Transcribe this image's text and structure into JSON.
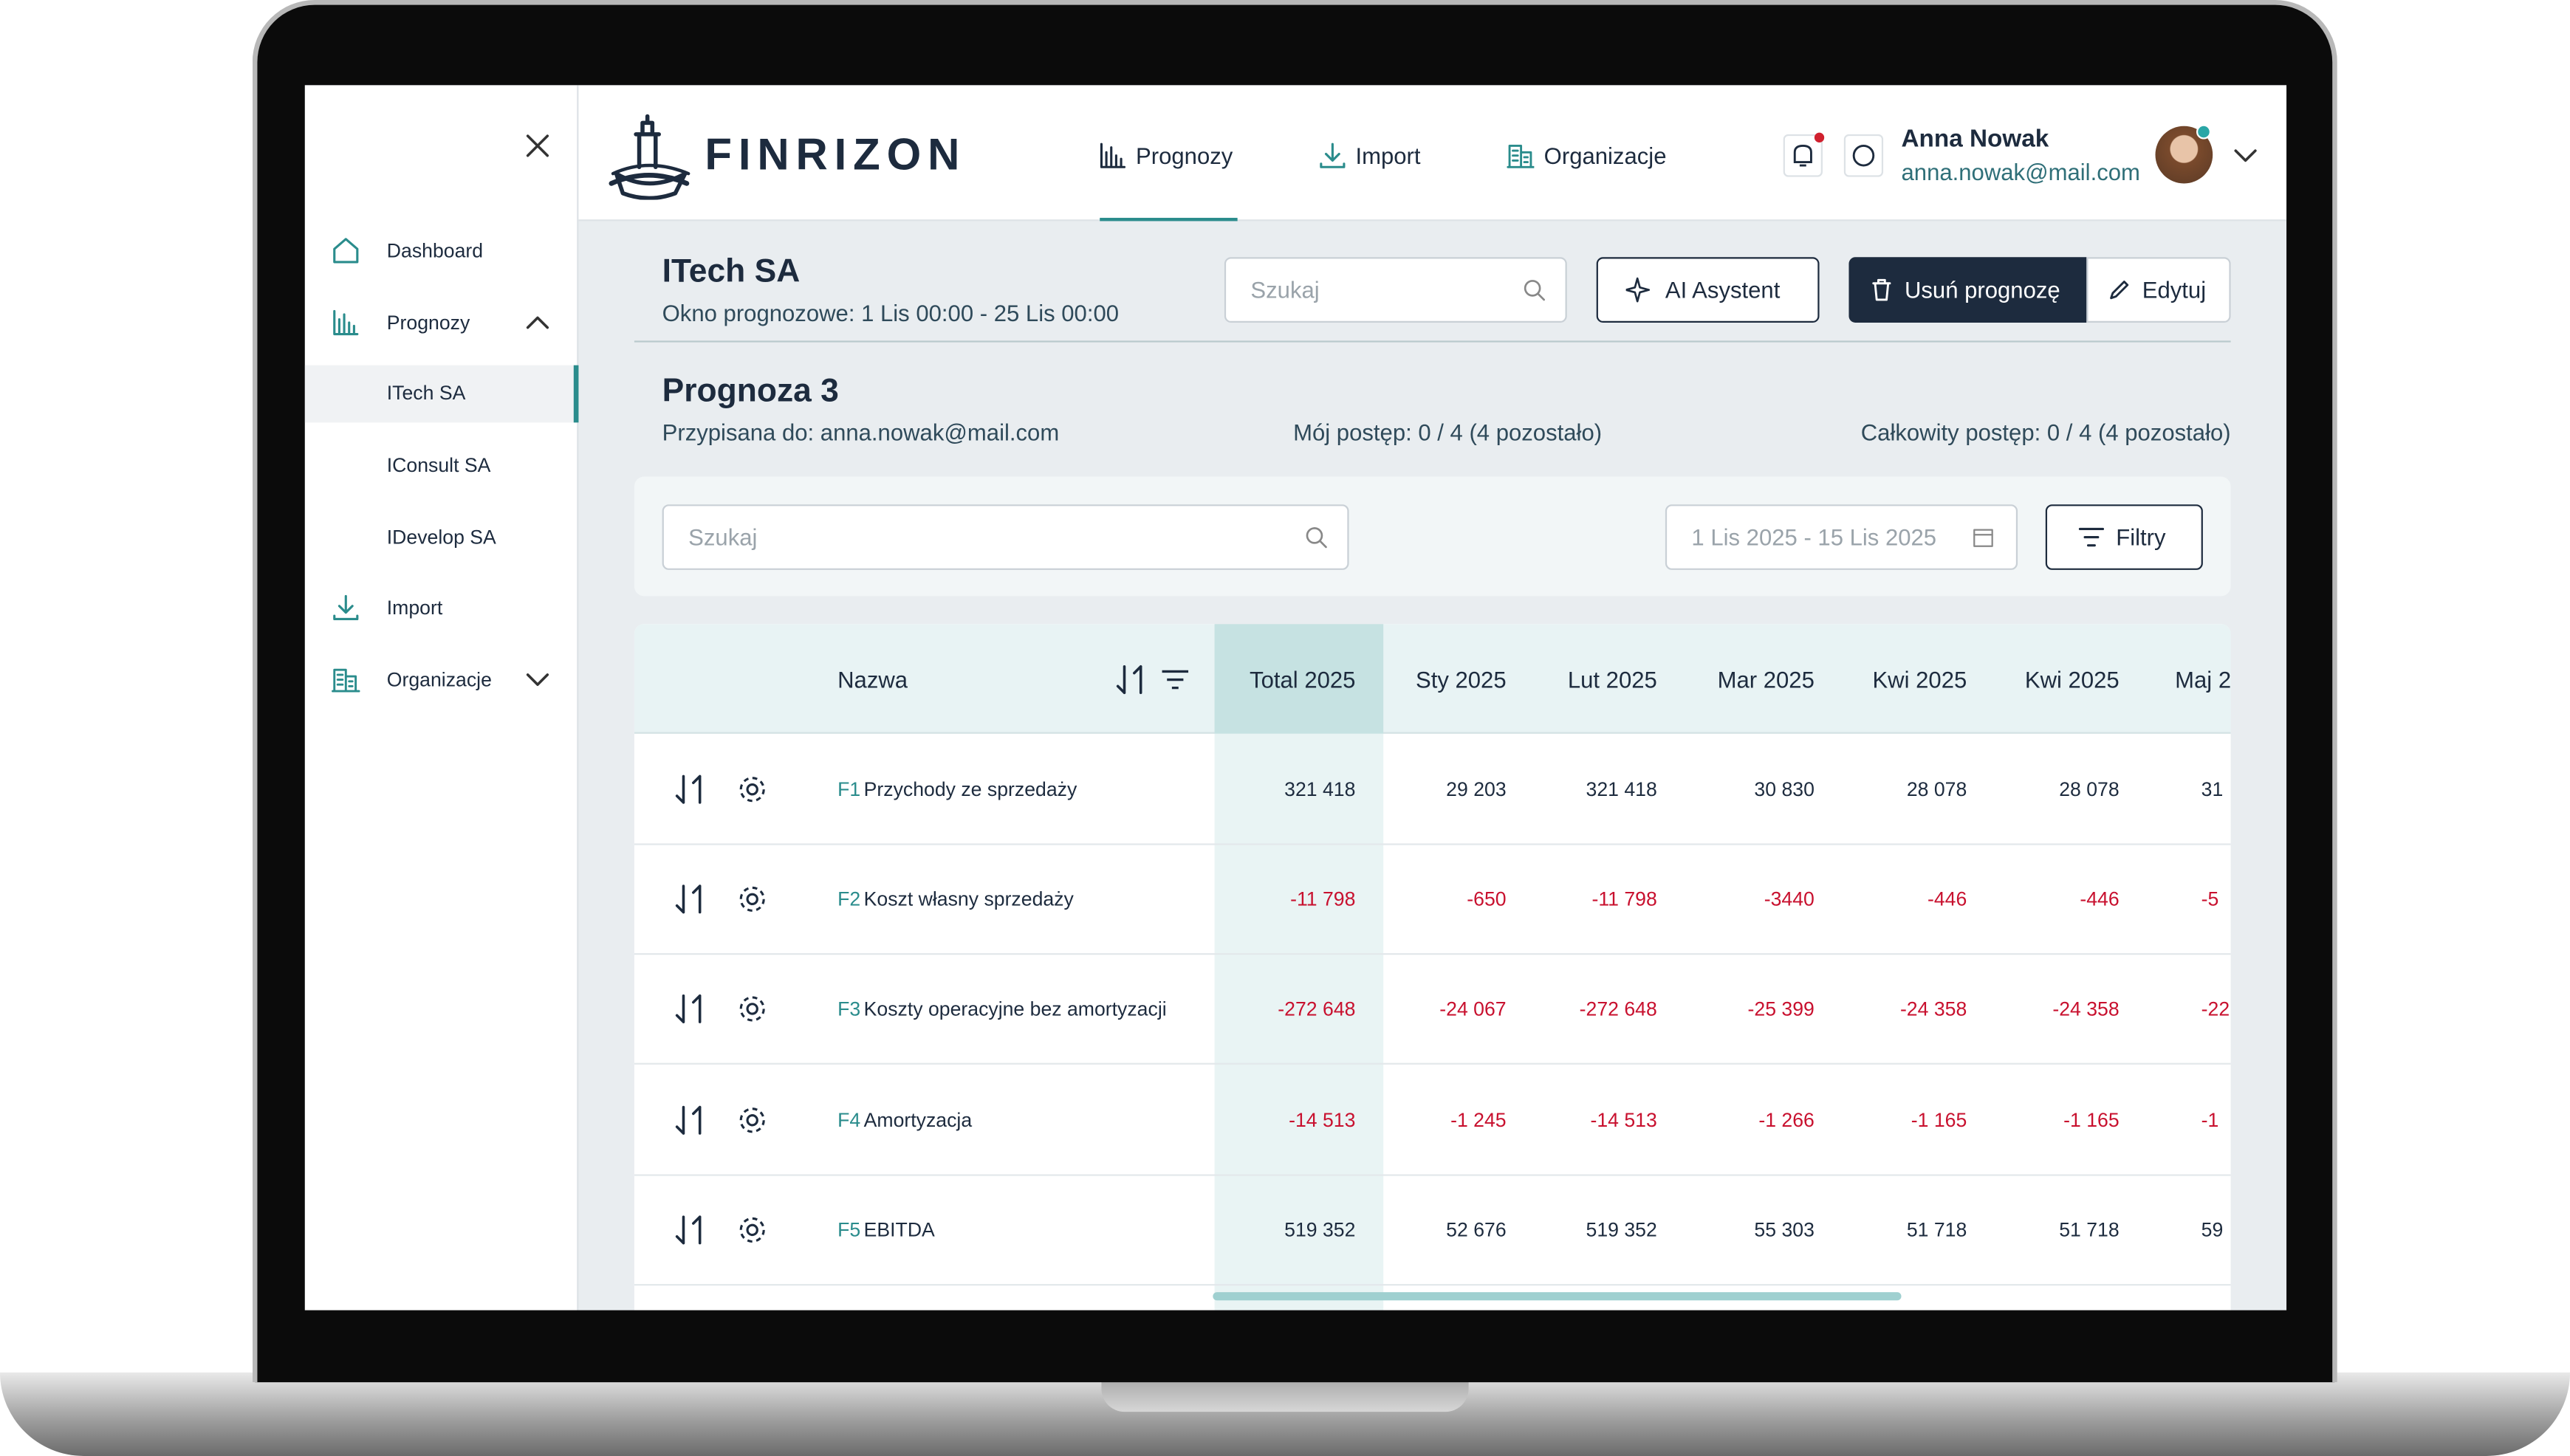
{
  "brand": "FINRIZON",
  "nav": [
    "Prognozy",
    "Import",
    "Organizacje"
  ],
  "user": {
    "name": "Anna Nowak",
    "email": "anna.nowak@mail.com"
  },
  "sidebar": {
    "items": [
      "Dashboard",
      "Prognozy",
      "Import",
      "Organizacje"
    ],
    "sub": [
      "ITech SA",
      "IConsult SA",
      "IDevelop SA"
    ]
  },
  "company": {
    "name": "ITech SA",
    "window": "Okno prognozowe: 1 Lis 00:00 - 25 Lis 00:00",
    "search_placeholder": "Szukaj"
  },
  "buttons": {
    "ai": "AI Asystent",
    "delete": "Usuń prognozę",
    "edit": "Edytuj",
    "filters": "Filtry"
  },
  "forecast": {
    "title": "Prognoza 3",
    "assigned": "Przypisana do: anna.nowak@mail.com",
    "my_progress": "Mój postęp: 0 / 4 (4 pozostało)",
    "total_progress": "Całkowity postęp: 0 / 4 (4 pozostało)"
  },
  "filter": {
    "search_placeholder": "Szukaj",
    "date_range": "1 Lis 2025 - 15 Lis 2025"
  },
  "table": {
    "name_header": "Nazwa",
    "columns": [
      "Total 2025",
      "Sty 2025",
      "Lut 2025",
      "Mar 2025",
      "Kwi 2025",
      "Kwi 2025",
      "Maj 2"
    ],
    "rows": [
      {
        "code": "F1",
        "name": "Przychody ze sprzedaży",
        "values": [
          "321 418",
          "29 203",
          "321 418",
          "30 830",
          "28 078",
          "28 078",
          "31"
        ]
      },
      {
        "code": "F2",
        "name": "Koszt własny sprzedaży",
        "values": [
          "-11 798",
          "-650",
          "-11 798",
          "-3440",
          "-446",
          "-446",
          "-5"
        ]
      },
      {
        "code": "F3",
        "name": "Koszty operacyjne bez amortyzacji",
        "values": [
          "-272 648",
          "-24 067",
          "-272 648",
          "-25 399",
          "-24 358",
          "-24 358",
          "-22"
        ]
      },
      {
        "code": "F4",
        "name": "Amortyzacja",
        "values": [
          "-14 513",
          "-1 245",
          "-14 513",
          "-1 266",
          "-1 165",
          "-1 165",
          "-1"
        ]
      },
      {
        "code": "F5",
        "name": "EBITDA",
        "values": [
          "519 352",
          "52 676",
          "519 352",
          "55 303",
          "51 718",
          "51 718",
          "59"
        ]
      }
    ]
  }
}
